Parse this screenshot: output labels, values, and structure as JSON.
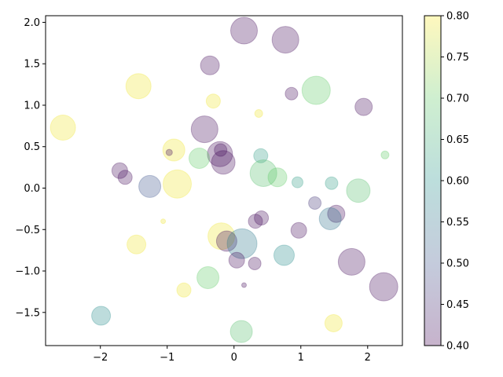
{
  "chart_data": {
    "type": "scatter",
    "title": "",
    "xlabel": "",
    "ylabel": "",
    "xlim": [
      -2.82,
      2.52
    ],
    "ylim": [
      -1.9,
      2.08
    ],
    "xticks": [
      -2,
      -1,
      0,
      1,
      2
    ],
    "yticks": [
      -1.5,
      -1.0,
      -0.5,
      0.0,
      0.5,
      1.0,
      1.5,
      2.0
    ],
    "colorbar": {
      "label": "",
      "range": [
        0.4,
        0.8
      ],
      "ticks": [
        0.4,
        0.45,
        0.5,
        0.55,
        0.6,
        0.65,
        0.7,
        0.75,
        0.8
      ],
      "colormap": "viridis",
      "alpha": 0.3
    },
    "marker_alpha": 0.3,
    "points": [
      {
        "x": 0.15,
        "y": 1.9,
        "r": 17,
        "c": 0.41
      },
      {
        "x": 0.77,
        "y": 1.79,
        "r": 17,
        "c": 0.41
      },
      {
        "x": -0.36,
        "y": 1.48,
        "r": 12,
        "c": 0.41
      },
      {
        "x": -1.43,
        "y": 1.23,
        "r": 16,
        "c": 0.79
      },
      {
        "x": 1.23,
        "y": 1.18,
        "r": 18,
        "c": 0.7
      },
      {
        "x": 0.86,
        "y": 1.14,
        "r": 8,
        "c": 0.41
      },
      {
        "x": -0.31,
        "y": 1.05,
        "r": 9,
        "c": 0.79
      },
      {
        "x": 1.94,
        "y": 0.98,
        "r": 11,
        "c": 0.41
      },
      {
        "x": 0.37,
        "y": 0.9,
        "r": 5,
        "c": 0.79
      },
      {
        "x": -2.56,
        "y": 0.73,
        "r": 16,
        "c": 0.79
      },
      {
        "x": -0.44,
        "y": 0.71,
        "r": 17,
        "c": 0.41
      },
      {
        "x": -0.9,
        "y": 0.46,
        "r": 14,
        "c": 0.79
      },
      {
        "x": -0.97,
        "y": 0.43,
        "r": 4,
        "c": 0.41
      },
      {
        "x": -0.2,
        "y": 0.46,
        "r": 8,
        "c": 0.41
      },
      {
        "x": -0.21,
        "y": 0.41,
        "r": 16,
        "c": 0.41
      },
      {
        "x": -0.52,
        "y": 0.36,
        "r": 13,
        "c": 0.7
      },
      {
        "x": 0.4,
        "y": 0.39,
        "r": 9,
        "c": 0.62
      },
      {
        "x": 2.26,
        "y": 0.4,
        "r": 5,
        "c": 0.7
      },
      {
        "x": -0.16,
        "y": 0.31,
        "r": 15,
        "c": 0.41
      },
      {
        "x": -1.71,
        "y": 0.21,
        "r": 10,
        "c": 0.41
      },
      {
        "x": 0.44,
        "y": 0.18,
        "r": 17,
        "c": 0.68
      },
      {
        "x": 0.65,
        "y": 0.13,
        "r": 12,
        "c": 0.7
      },
      {
        "x": -1.63,
        "y": 0.13,
        "r": 9,
        "c": 0.41
      },
      {
        "x": -0.85,
        "y": 0.05,
        "r": 18,
        "c": 0.79
      },
      {
        "x": -1.26,
        "y": 0.02,
        "r": 14,
        "c": 0.5
      },
      {
        "x": 0.95,
        "y": 0.07,
        "r": 7,
        "c": 0.62
      },
      {
        "x": 1.46,
        "y": 0.06,
        "r": 8,
        "c": 0.62
      },
      {
        "x": 1.86,
        "y": -0.03,
        "r": 15,
        "c": 0.68
      },
      {
        "x": 1.21,
        "y": -0.18,
        "r": 8,
        "c": 0.46
      },
      {
        "x": 1.53,
        "y": -0.31,
        "r": 11,
        "c": 0.41
      },
      {
        "x": 1.44,
        "y": -0.37,
        "r": 14,
        "c": 0.55
      },
      {
        "x": -1.06,
        "y": -0.4,
        "r": 3,
        "c": 0.79
      },
      {
        "x": 0.32,
        "y": -0.4,
        "r": 9,
        "c": 0.41
      },
      {
        "x": 0.41,
        "y": -0.36,
        "r": 9,
        "c": 0.41
      },
      {
        "x": 0.97,
        "y": -0.51,
        "r": 10,
        "c": 0.41
      },
      {
        "x": -0.19,
        "y": -0.58,
        "r": 17,
        "c": 0.79
      },
      {
        "x": -0.11,
        "y": -0.64,
        "r": 13,
        "c": 0.41
      },
      {
        "x": 0.12,
        "y": -0.67,
        "r": 19,
        "c": 0.56
      },
      {
        "x": -1.46,
        "y": -0.68,
        "r": 12,
        "c": 0.79
      },
      {
        "x": 0.75,
        "y": -0.81,
        "r": 13,
        "c": 0.59
      },
      {
        "x": 0.04,
        "y": -0.87,
        "r": 10,
        "c": 0.41
      },
      {
        "x": 0.31,
        "y": -0.91,
        "r": 8,
        "c": 0.41
      },
      {
        "x": 1.76,
        "y": -0.89,
        "r": 17,
        "c": 0.41
      },
      {
        "x": -0.39,
        "y": -1.08,
        "r": 14,
        "c": 0.7
      },
      {
        "x": 0.15,
        "y": -1.17,
        "r": 3,
        "c": 0.41
      },
      {
        "x": 2.24,
        "y": -1.19,
        "r": 18,
        "c": 0.41
      },
      {
        "x": -0.75,
        "y": -1.23,
        "r": 9,
        "c": 0.79
      },
      {
        "x": -1.99,
        "y": -1.54,
        "r": 12,
        "c": 0.59
      },
      {
        "x": 1.49,
        "y": -1.63,
        "r": 11,
        "c": 0.79
      },
      {
        "x": 0.11,
        "y": -1.73,
        "r": 14,
        "c": 0.68
      }
    ]
  }
}
